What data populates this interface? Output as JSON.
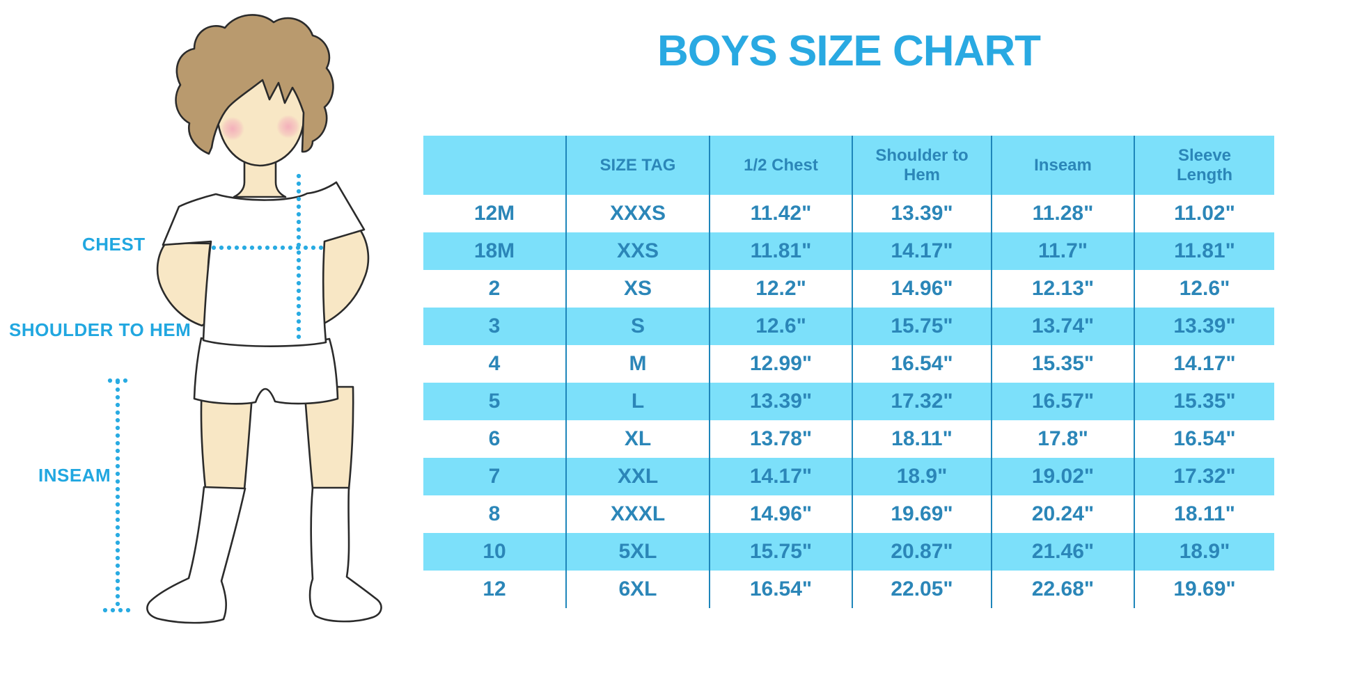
{
  "title": "BOYS SIZE CHART",
  "figure": {
    "illustration": "boy-with-measurement-lines",
    "labels": {
      "chest": "CHEST",
      "shoulder_to_hem": "SHOULDER TO HEM",
      "inseam": "INSEAM"
    }
  },
  "colors": {
    "accent_blue": "#29A9E2",
    "table_header_bg": "#7CE0FA",
    "table_text": "#2B86B8",
    "column_separator": "#1E86BA",
    "dotted_line": "#29ABE2",
    "skin": "#F8E7C5",
    "hair": "#B99A6E"
  },
  "table": {
    "columns": [
      "",
      "SIZE TAG",
      "1/2 Chest",
      "Shoulder to Hem",
      "Inseam",
      "Sleeve Length"
    ],
    "rows": [
      [
        "12M",
        "XXXS",
        "11.42\"",
        "13.39\"",
        "11.28\"",
        "11.02\""
      ],
      [
        "18M",
        "XXS",
        "11.81\"",
        "14.17\"",
        "11.7\"",
        "11.81\""
      ],
      [
        "2",
        "XS",
        "12.2\"",
        "14.96\"",
        "12.13\"",
        "12.6\""
      ],
      [
        "3",
        "S",
        "12.6\"",
        "15.75\"",
        "13.74\"",
        "13.39\""
      ],
      [
        "4",
        "M",
        "12.99\"",
        "16.54\"",
        "15.35\"",
        "14.17\""
      ],
      [
        "5",
        "L",
        "13.39\"",
        "17.32\"",
        "16.57\"",
        "15.35\""
      ],
      [
        "6",
        "XL",
        "13.78\"",
        "18.11\"",
        "17.8\"",
        "16.54\""
      ],
      [
        "7",
        "XXL",
        "14.17\"",
        "18.9\"",
        "19.02\"",
        "17.32\""
      ],
      [
        "8",
        "XXXL",
        "14.96\"",
        "19.69\"",
        "20.24\"",
        "18.11\""
      ],
      [
        "10",
        "5XL",
        "15.75\"",
        "20.87\"",
        "21.46\"",
        "18.9\""
      ],
      [
        "12",
        "6XL",
        "16.54\"",
        "22.05\"",
        "22.68\"",
        "19.69\""
      ]
    ]
  },
  "chart_data": {
    "type": "table",
    "title": "BOYS SIZE CHART",
    "columns": [
      "",
      "SIZE TAG",
      "1/2 Chest",
      "Shoulder to Hem",
      "Inseam",
      "Sleeve Length"
    ],
    "rows": [
      [
        "12M",
        "XXXS",
        "11.42\"",
        "13.39\"",
        "11.28\"",
        "11.02\""
      ],
      [
        "18M",
        "XXS",
        "11.81\"",
        "14.17\"",
        "11.7\"",
        "11.81\""
      ],
      [
        "2",
        "XS",
        "12.2\"",
        "14.96\"",
        "12.13\"",
        "12.6\""
      ],
      [
        "3",
        "S",
        "12.6\"",
        "15.75\"",
        "13.74\"",
        "13.39\""
      ],
      [
        "4",
        "M",
        "12.99\"",
        "16.54\"",
        "15.35\"",
        "14.17\""
      ],
      [
        "5",
        "L",
        "13.39\"",
        "17.32\"",
        "16.57\"",
        "15.35\""
      ],
      [
        "6",
        "XL",
        "13.78\"",
        "18.11\"",
        "17.8\"",
        "16.54\""
      ],
      [
        "7",
        "XXL",
        "14.17\"",
        "18.9\"",
        "19.02\"",
        "17.32\""
      ],
      [
        "8",
        "XXXL",
        "14.96\"",
        "19.69\"",
        "20.24\"",
        "18.11\""
      ],
      [
        "10",
        "5XL",
        "15.75\"",
        "20.87\"",
        "21.46\"",
        "18.9\""
      ],
      [
        "12",
        "6XL",
        "16.54\"",
        "22.05\"",
        "22.68\"",
        "19.69\""
      ]
    ],
    "layout_hints": {
      "striped_rows": "every second data row light blue",
      "header_bg": "#7CE0FA",
      "legend_position": "none",
      "grid": "vertical column separators only"
    }
  }
}
